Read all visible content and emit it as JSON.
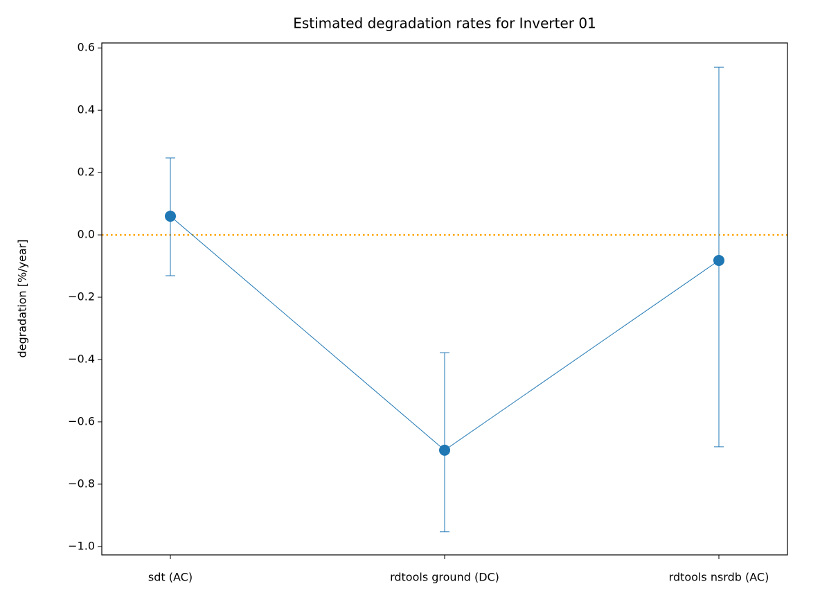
{
  "chart_data": {
    "type": "errorbar",
    "title": "Estimated degradation rates for Inverter 01",
    "y_label": "degradation [%/year]",
    "categories": [
      "sdt (AC)",
      "rdtools ground (DC)",
      "rdtools nsrdb (AC)"
    ],
    "values": [
      0.06,
      -0.691,
      -0.082
    ],
    "errors_minus": [
      0.191,
      0.262,
      0.598
    ],
    "errors_plus": [
      0.187,
      0.313,
      0.62
    ],
    "color": "#1f77b4",
    "hline": 0,
    "hline_color": "#ffa500",
    "ylim": [
      -1.027,
      0.616
    ],
    "yticks": [
      {
        "value": -1.0,
        "label": "−1.0"
      },
      {
        "value": -0.8,
        "label": "−0.8"
      },
      {
        "value": -0.6,
        "label": "−0.6"
      },
      {
        "value": -0.4,
        "label": "−0.4"
      },
      {
        "value": -0.2,
        "label": "−0.2"
      },
      {
        "value": 0,
        "label": "0.0"
      },
      0.2,
      0.4,
      0.6
    ],
    "grid": false
  }
}
